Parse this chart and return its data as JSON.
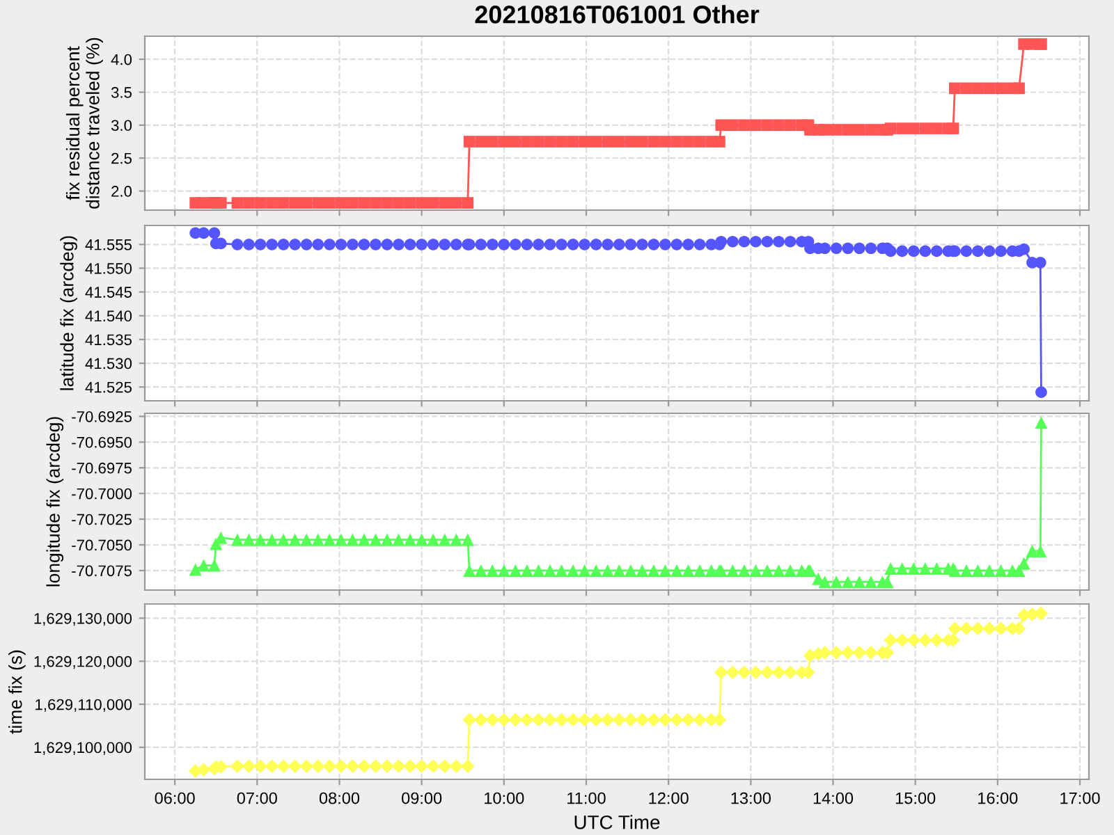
{
  "chart_data": [
    {
      "type": "line",
      "title": "20210816T061001 Other",
      "ylabel": "fix residual percent distance traveled (%)",
      "marker": "square",
      "line_style": "solid",
      "grid": true,
      "tick_labels": "y",
      "x": [
        6.25,
        6.35,
        6.48,
        6.5,
        6.56,
        6.76,
        6.9,
        7.04,
        7.18,
        7.32,
        7.46,
        7.6,
        7.74,
        7.88,
        8.02,
        8.16,
        8.3,
        8.44,
        8.58,
        8.72,
        8.86,
        9.0,
        9.14,
        9.28,
        9.42,
        9.56,
        9.58,
        9.72,
        9.86,
        10.0,
        10.14,
        10.28,
        10.42,
        10.56,
        10.7,
        10.84,
        10.98,
        11.12,
        11.26,
        11.4,
        11.54,
        11.68,
        11.82,
        11.96,
        12.1,
        12.24,
        12.38,
        12.52,
        12.62,
        12.64,
        12.78,
        12.92,
        13.06,
        13.2,
        13.34,
        13.48,
        13.62,
        13.7,
        13.72,
        13.82,
        13.9,
        14.04,
        14.18,
        14.32,
        14.46,
        14.6,
        14.66,
        14.7,
        14.84,
        14.98,
        15.12,
        15.26,
        15.4,
        15.46,
        15.48,
        15.62,
        15.76,
        15.9,
        16.04,
        16.18,
        16.26,
        16.32,
        16.42,
        16.52,
        16.53
      ],
      "series": [
        {
          "color": "#ff5555",
          "values": [
            1.82,
            1.82,
            1.82,
            1.82,
            1.82,
            1.82,
            1.82,
            1.82,
            1.82,
            1.82,
            1.82,
            1.82,
            1.82,
            1.82,
            1.82,
            1.82,
            1.82,
            1.82,
            1.82,
            1.82,
            1.82,
            1.82,
            1.82,
            1.82,
            1.82,
            1.82,
            2.75,
            2.75,
            2.75,
            2.75,
            2.75,
            2.75,
            2.75,
            2.75,
            2.75,
            2.75,
            2.75,
            2.75,
            2.75,
            2.75,
            2.75,
            2.75,
            2.75,
            2.75,
            2.75,
            2.75,
            2.75,
            2.75,
            2.75,
            3.0,
            3.0,
            3.0,
            3.0,
            3.0,
            3.0,
            3.0,
            3.0,
            3.0,
            2.93,
            2.93,
            2.93,
            2.93,
            2.93,
            2.93,
            2.93,
            2.93,
            2.93,
            2.95,
            2.95,
            2.95,
            2.95,
            2.95,
            2.95,
            2.95,
            3.56,
            3.56,
            3.56,
            3.56,
            3.56,
            3.56,
            3.56,
            4.23,
            4.23,
            4.23,
            4.23
          ]
        }
      ],
      "xlim": [
        5.635,
        17.11
      ],
      "ylim": [
        1.71,
        4.35
      ],
      "yticks": [
        {
          "value": 2.0,
          "label": "2.0"
        },
        {
          "value": 2.5,
          "label": "2.5"
        },
        {
          "value": 3.0,
          "label": "3.0"
        },
        {
          "value": 3.5,
          "label": "3.5"
        },
        {
          "value": 4.0,
          "label": "4.0"
        }
      ]
    },
    {
      "type": "line",
      "ylabel": "latitude fix (arcdeg)",
      "marker": "circle",
      "line_style": "solid",
      "grid": true,
      "tick_labels": "y",
      "x": [
        6.25,
        6.35,
        6.48,
        6.5,
        6.56,
        6.76,
        6.9,
        7.04,
        7.18,
        7.32,
        7.46,
        7.6,
        7.74,
        7.88,
        8.02,
        8.16,
        8.3,
        8.44,
        8.58,
        8.72,
        8.86,
        9.0,
        9.14,
        9.28,
        9.42,
        9.56,
        9.58,
        9.72,
        9.86,
        10.0,
        10.14,
        10.28,
        10.42,
        10.56,
        10.7,
        10.84,
        10.98,
        11.12,
        11.26,
        11.4,
        11.54,
        11.68,
        11.82,
        11.96,
        12.1,
        12.24,
        12.38,
        12.52,
        12.62,
        12.64,
        12.78,
        12.92,
        13.06,
        13.2,
        13.34,
        13.48,
        13.62,
        13.7,
        13.72,
        13.82,
        13.9,
        14.04,
        14.18,
        14.32,
        14.46,
        14.6,
        14.66,
        14.7,
        14.84,
        14.98,
        15.12,
        15.26,
        15.4,
        15.46,
        15.48,
        15.62,
        15.76,
        15.9,
        16.04,
        16.18,
        16.26,
        16.32,
        16.42,
        16.52,
        16.53
      ],
      "series": [
        {
          "color": "#5555ff",
          "values": [
            41.5574,
            41.5574,
            41.5574,
            41.5552,
            41.5552,
            41.555,
            41.555,
            41.555,
            41.555,
            41.555,
            41.555,
            41.555,
            41.555,
            41.555,
            41.555,
            41.555,
            41.555,
            41.555,
            41.555,
            41.555,
            41.555,
            41.555,
            41.555,
            41.555,
            41.555,
            41.555,
            41.555,
            41.555,
            41.555,
            41.555,
            41.555,
            41.555,
            41.555,
            41.555,
            41.555,
            41.555,
            41.555,
            41.555,
            41.555,
            41.555,
            41.555,
            41.555,
            41.555,
            41.555,
            41.555,
            41.555,
            41.555,
            41.555,
            41.555,
            41.5556,
            41.5556,
            41.5556,
            41.5556,
            41.5556,
            41.5556,
            41.5556,
            41.5556,
            41.5556,
            41.5542,
            41.5542,
            41.5542,
            41.5542,
            41.5542,
            41.5542,
            41.5542,
            41.5542,
            41.5542,
            41.5536,
            41.5536,
            41.5536,
            41.5536,
            41.5536,
            41.5536,
            41.5536,
            41.5536,
            41.5536,
            41.5536,
            41.5536,
            41.5536,
            41.5536,
            41.5536,
            41.554,
            41.5512,
            41.5512,
            41.5239
          ]
        }
      ],
      "xlim": [
        5.635,
        17.11
      ],
      "ylim": [
        41.5221,
        41.559
      ],
      "yticks": [
        {
          "value": 41.525,
          "label": "41.525"
        },
        {
          "value": 41.53,
          "label": "41.530"
        },
        {
          "value": 41.535,
          "label": "41.535"
        },
        {
          "value": 41.54,
          "label": "41.540"
        },
        {
          "value": 41.545,
          "label": "41.545"
        },
        {
          "value": 41.55,
          "label": "41.550"
        },
        {
          "value": 41.555,
          "label": "41.555"
        }
      ]
    },
    {
      "type": "line",
      "ylabel": "longitude fix (arcdeg)",
      "marker": "triangle",
      "line_style": "solid",
      "grid": true,
      "tick_labels": "y",
      "x": [
        6.25,
        6.35,
        6.48,
        6.5,
        6.56,
        6.76,
        6.9,
        7.04,
        7.18,
        7.32,
        7.46,
        7.6,
        7.74,
        7.88,
        8.02,
        8.16,
        8.3,
        8.44,
        8.58,
        8.72,
        8.86,
        9.0,
        9.14,
        9.28,
        9.42,
        9.56,
        9.58,
        9.72,
        9.86,
        10.0,
        10.14,
        10.28,
        10.42,
        10.56,
        10.7,
        10.84,
        10.98,
        11.12,
        11.26,
        11.4,
        11.54,
        11.68,
        11.82,
        11.96,
        12.1,
        12.24,
        12.38,
        12.52,
        12.62,
        12.64,
        12.78,
        12.92,
        13.06,
        13.2,
        13.34,
        13.48,
        13.62,
        13.7,
        13.72,
        13.82,
        13.9,
        14.04,
        14.18,
        14.32,
        14.46,
        14.6,
        14.66,
        14.7,
        14.84,
        14.98,
        15.12,
        15.26,
        15.4,
        15.46,
        15.48,
        15.62,
        15.76,
        15.9,
        16.04,
        16.18,
        16.26,
        16.32,
        16.42,
        16.52,
        16.53
      ],
      "series": [
        {
          "color": "#55ff55",
          "values": [
            -70.7074,
            -70.707,
            -70.707,
            -70.7049,
            -70.7043,
            -70.7045,
            -70.7045,
            -70.7045,
            -70.7045,
            -70.7045,
            -70.7045,
            -70.7045,
            -70.7045,
            -70.7045,
            -70.7045,
            -70.7045,
            -70.7045,
            -70.7045,
            -70.7045,
            -70.7045,
            -70.7045,
            -70.7045,
            -70.7045,
            -70.7045,
            -70.7045,
            -70.7045,
            -70.7075,
            -70.7075,
            -70.7075,
            -70.7075,
            -70.7075,
            -70.7075,
            -70.7075,
            -70.7075,
            -70.7075,
            -70.7075,
            -70.7075,
            -70.7075,
            -70.7075,
            -70.7075,
            -70.7075,
            -70.7075,
            -70.7075,
            -70.7075,
            -70.7075,
            -70.7075,
            -70.7075,
            -70.7075,
            -70.7075,
            -70.7075,
            -70.7075,
            -70.7075,
            -70.7075,
            -70.7075,
            -70.7075,
            -70.7075,
            -70.7075,
            -70.7075,
            -70.7075,
            -70.7083,
            -70.7086,
            -70.7086,
            -70.7086,
            -70.7086,
            -70.7086,
            -70.7086,
            -70.7086,
            -70.7073,
            -70.7073,
            -70.7073,
            -70.7073,
            -70.7073,
            -70.7073,
            -70.7073,
            -70.7075,
            -70.7075,
            -70.7075,
            -70.7075,
            -70.7075,
            -70.7075,
            -70.7075,
            -70.7068,
            -70.7056,
            -70.7056,
            -70.6931
          ]
        }
      ],
      "xlim": [
        5.635,
        17.11
      ],
      "ylim": [
        -70.7094,
        -70.6922
      ],
      "yticks": [
        {
          "value": -70.7075,
          "label": "-70.7075"
        },
        {
          "value": -70.705,
          "label": "-70.7050"
        },
        {
          "value": -70.7025,
          "label": "-70.7025"
        },
        {
          "value": -70.7,
          "label": "-70.7000"
        },
        {
          "value": -70.6975,
          "label": "-70.6975"
        },
        {
          "value": -70.695,
          "label": "-70.6950"
        },
        {
          "value": -70.6925,
          "label": "-70.6925"
        }
      ]
    },
    {
      "type": "line",
      "xlabel": "UTC Time",
      "ylabel": "time fix (s)",
      "marker": "diamond",
      "line_style": "solid",
      "grid": true,
      "x": [
        6.25,
        6.35,
        6.48,
        6.5,
        6.56,
        6.76,
        6.9,
        7.04,
        7.18,
        7.32,
        7.46,
        7.6,
        7.74,
        7.88,
        8.02,
        8.16,
        8.3,
        8.44,
        8.58,
        8.72,
        8.86,
        9.0,
        9.14,
        9.28,
        9.42,
        9.56,
        9.58,
        9.72,
        9.86,
        10.0,
        10.14,
        10.28,
        10.42,
        10.56,
        10.7,
        10.84,
        10.98,
        11.12,
        11.26,
        11.4,
        11.54,
        11.68,
        11.82,
        11.96,
        12.1,
        12.24,
        12.38,
        12.52,
        12.62,
        12.64,
        12.78,
        12.92,
        13.06,
        13.2,
        13.34,
        13.48,
        13.62,
        13.7,
        13.72,
        13.82,
        13.9,
        14.04,
        14.18,
        14.32,
        14.46,
        14.6,
        14.66,
        14.7,
        14.84,
        14.98,
        15.12,
        15.26,
        15.4,
        15.46,
        15.48,
        15.62,
        15.76,
        15.9,
        16.04,
        16.18,
        16.26,
        16.32,
        16.42,
        16.52,
        16.53
      ],
      "series": [
        {
          "color": "#ffff55",
          "values": [
            1629094500,
            1629094800,
            1629095100,
            1629095400,
            1629095500,
            1629095600,
            1629095600,
            1629095600,
            1629095600,
            1629095600,
            1629095600,
            1629095600,
            1629095600,
            1629095600,
            1629095600,
            1629095600,
            1629095600,
            1629095600,
            1629095600,
            1629095600,
            1629095600,
            1629095600,
            1629095600,
            1629095600,
            1629095600,
            1629095600,
            1629106400,
            1629106400,
            1629106400,
            1629106400,
            1629106400,
            1629106400,
            1629106400,
            1629106400,
            1629106400,
            1629106400,
            1629106400,
            1629106400,
            1629106400,
            1629106400,
            1629106400,
            1629106400,
            1629106400,
            1629106400,
            1629106400,
            1629106400,
            1629106400,
            1629106400,
            1629106400,
            1629117400,
            1629117400,
            1629117400,
            1629117400,
            1629117400,
            1629117400,
            1629117400,
            1629117400,
            1629117400,
            1629121300,
            1629121700,
            1629122000,
            1629122000,
            1629122000,
            1629122000,
            1629122000,
            1629122000,
            1629122000,
            1629124900,
            1629124900,
            1629124900,
            1629124900,
            1629124900,
            1629124900,
            1629124900,
            1629127600,
            1629127600,
            1629127600,
            1629127600,
            1629127600,
            1629127600,
            1629127600,
            1629130700,
            1629130900,
            1629131100,
            1629131100
          ]
        }
      ],
      "xlim": [
        5.635,
        17.11
      ],
      "xticks": [
        {
          "value": 6,
          "label": "06:00"
        },
        {
          "value": 7,
          "label": "07:00"
        },
        {
          "value": 8,
          "label": "08:00"
        },
        {
          "value": 9,
          "label": "09:00"
        },
        {
          "value": 10,
          "label": "10:00"
        },
        {
          "value": 11,
          "label": "11:00"
        },
        {
          "value": 12,
          "label": "12:00"
        },
        {
          "value": 13,
          "label": "13:00"
        },
        {
          "value": 14,
          "label": "14:00"
        },
        {
          "value": 15,
          "label": "15:00"
        },
        {
          "value": 16,
          "label": "16:00"
        },
        {
          "value": 17,
          "label": "17:00"
        }
      ],
      "ylim": [
        1629092560,
        1629133300
      ],
      "yticks": [
        {
          "value": 1629100000,
          "label": "1,629,100,000"
        },
        {
          "value": 1629110000,
          "label": "1,629,110,000"
        },
        {
          "value": 1629120000,
          "label": "1,629,120,000"
        },
        {
          "value": 1629130000,
          "label": "1,629,130,000"
        }
      ]
    }
  ]
}
